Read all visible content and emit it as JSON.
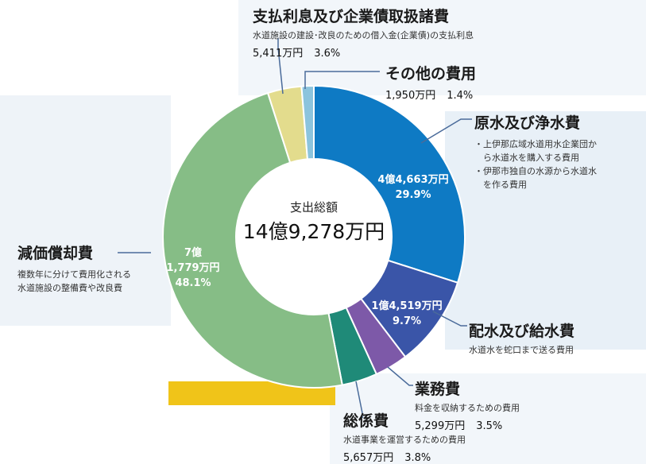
{
  "colors": {
    "genzui": "#0e7ac4",
    "haisui": "#3a55a8",
    "gyomu": "#7d59a8",
    "somu": "#1f8a78",
    "genka": "#86bd86",
    "shiharai": "#e3dc8d",
    "sonota": "#8cc4dd",
    "panel": "#e5eef6",
    "leader": "#4a6b9a"
  },
  "center": {
    "label": "支出総額",
    "value": "14億9,278万円"
  },
  "chart_data": {
    "type": "pie",
    "categories": [
      "原水及び浄水費",
      "配水及び給水費",
      "業務費",
      "総係費",
      "減価償却費",
      "支払利息及び企業債取扱諸費",
      "その他の費用"
    ],
    "values": [
      44663,
      14519,
      5299,
      5657,
      71779,
      5411,
      1950
    ],
    "percent": [
      29.9,
      9.7,
      3.5,
      3.8,
      48.1,
      3.6,
      1.4
    ],
    "unit": "万円",
    "total": "14億9,278万円"
  },
  "slice_labels": {
    "genzui": {
      "amount": "4億4,663万円",
      "pct": "29.9%"
    },
    "haisui": {
      "amount": "1億4,519万円",
      "pct": "9.7%"
    },
    "genka": {
      "line1": "7億",
      "line2": "1,779万円",
      "pct": "48.1%"
    }
  },
  "labels": {
    "shiharai": {
      "title": "支払利息及び企業債取扱諸費",
      "desc": "水道施設の建設･改良のための借入金(企業債)の支払利息",
      "amount": "5,411万円",
      "pct": "3.6%"
    },
    "sonota": {
      "title": "その他の費用",
      "amount": "1,950万円",
      "pct": "1.4%"
    },
    "genzui": {
      "title": "原水及び浄水費",
      "bullet1a": "・上伊那広域水道用水企業団か",
      "bullet1b": "ら水道水を購入する費用",
      "bullet2a": "・伊那市独自の水源から水道水",
      "bullet2b": "を作る費用"
    },
    "genka": {
      "title": "減価償却費",
      "desc1": "複数年に分けて費用化される",
      "desc2": "水道施設の整備費や改良費"
    },
    "haisui": {
      "title": "配水及び給水費",
      "desc": "水道水を蛇口まで送る費用"
    },
    "gyomu": {
      "title": "業務費",
      "desc": "料金を収納するための費用",
      "amount": "5,299万円",
      "pct": "3.5%"
    },
    "somu": {
      "title": "総係費",
      "desc": "水道事業を運営するための費用",
      "amount": "5,657万円",
      "pct": "3.8%"
    }
  }
}
